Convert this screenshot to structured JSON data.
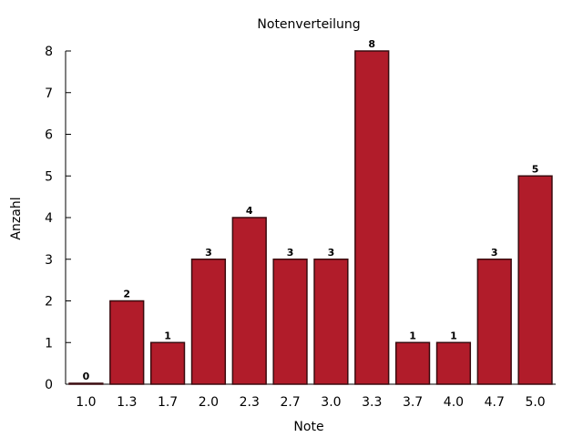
{
  "chart_data": {
    "type": "bar",
    "title": "Notenverteilung",
    "xlabel": "Note",
    "ylabel": "Anzahl",
    "categories": [
      "1.0",
      "1.3",
      "1.7",
      "2.0",
      "2.3",
      "2.7",
      "3.0",
      "3.3",
      "3.7",
      "4.0",
      "4.7",
      "5.0"
    ],
    "values": [
      0,
      2,
      1,
      3,
      4,
      3,
      3,
      8,
      1,
      1,
      3,
      5
    ],
    "ylim": [
      0,
      8
    ],
    "yticks": [
      0,
      1,
      2,
      3,
      4,
      5,
      6,
      7,
      8
    ],
    "grid": false,
    "data_labels": true,
    "bar_color": "#b11c2a",
    "bar_edge_color": "#3a0a0e"
  }
}
